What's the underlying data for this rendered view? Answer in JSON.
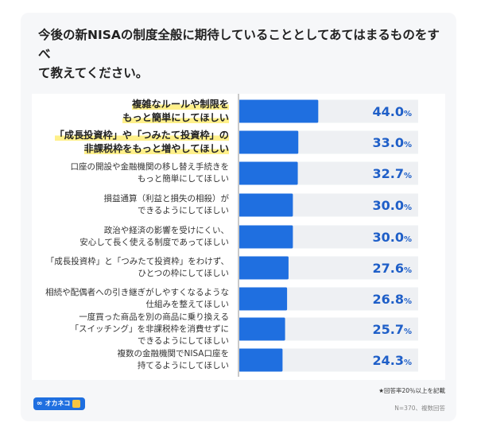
{
  "title_lines": [
    "今後の新NISAの制度全般に期待していることとしてあてはまるものをすべ",
    "て教えてください。"
  ],
  "chart_data": {
    "type": "bar",
    "orientation": "horizontal",
    "categories": [
      [
        "複雑なルールや制限を",
        "もっと簡単にしてほしい"
      ],
      [
        "「成長投資枠」や「つみたて投資枠」の",
        "非課税枠をもっと増やしてほしい"
      ],
      [
        "口座の開設や金融機関の移し替え手続きを",
        "もっと簡単にしてほしい"
      ],
      [
        "損益通算（利益と損失の相殺）が",
        "できるようにしてほしい"
      ],
      [
        "政治や経済の影響を受けにくい、",
        "安心して長く使える制度であってほしい"
      ],
      [
        "「成長投資枠」と「つみたて投資枠」をわけず、",
        "ひとつの枠にしてほしい"
      ],
      [
        "相続や配偶者への引き継ぎがしやすくなるような",
        "仕組みを整えてほしい"
      ],
      [
        "一度買った商品を別の商品に乗り換える",
        "「スイッチング」を非課税枠を消費せずに",
        "できるようにしてほしい"
      ],
      [
        "複数の金融機関でNISA口座を",
        "持てるようにしてほしい"
      ]
    ],
    "values": [
      44.0,
      33.0,
      32.7,
      30.0,
      30.0,
      27.6,
      26.8,
      25.7,
      24.3
    ],
    "value_labels": [
      "44.0",
      "33.0",
      "32.7",
      "30.0",
      "30.0",
      "27.6",
      "26.8",
      "25.7",
      "24.3"
    ],
    "unit": "%",
    "highlighted": [
      0,
      1
    ],
    "xlim": [
      0,
      100
    ],
    "bar_color": "#1f6fe0",
    "track_color": "#eef0f3",
    "value_color": "#1f5fc8",
    "highlight_color": "#fff08a"
  },
  "footnote": "★回答率20％以上を記載",
  "sample_note": "N=370、複数回答",
  "logo": {
    "mark": "∞",
    "text": "オカネコ",
    "icon": "cat-mascot-icon"
  }
}
